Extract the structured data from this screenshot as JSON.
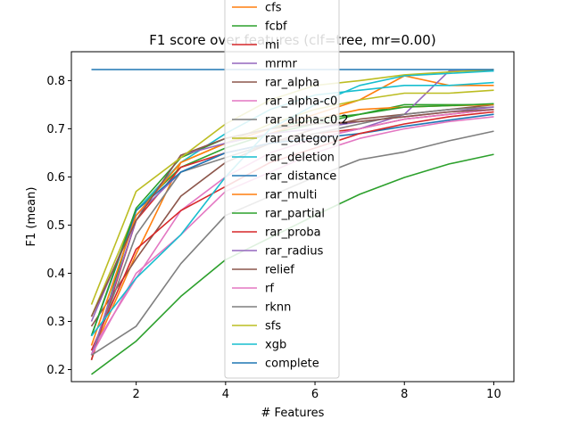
{
  "chart_data": {
    "type": "line",
    "title": "F1 score over features (clf=tree, mr=0.00)",
    "xlabel": "# Features",
    "ylabel": "F1 (mean)",
    "xlim": [
      0.55,
      10.45
    ],
    "ylim": [
      0.175,
      0.86
    ],
    "xticks": [
      2,
      4,
      6,
      8,
      10
    ],
    "yticks": [
      0.2,
      0.3,
      0.4,
      0.5,
      0.6,
      0.7,
      0.8
    ],
    "grid": false,
    "legend_placement": "upper-center",
    "x": [
      1,
      2,
      3,
      4,
      5,
      6,
      7,
      8,
      9,
      10
    ],
    "series": [
      {
        "name": "cfs",
        "color": "#ff7f0e",
        "values": [
          0.23,
          0.44,
          0.63,
          0.67,
          0.7,
          0.73,
          0.76,
          0.81,
          0.79,
          0.79
        ]
      },
      {
        "name": "fcbf",
        "color": "#2ca02c",
        "values": [
          0.22,
          0.53,
          0.62,
          0.66,
          0.69,
          0.71,
          0.73,
          0.75,
          0.75,
          0.75
        ]
      },
      {
        "name": "mi",
        "color": "#d62728",
        "values": [
          0.22,
          0.51,
          0.62,
          0.65,
          0.67,
          0.69,
          0.7,
          0.72,
          0.73,
          0.74
        ]
      },
      {
        "name": "mrmr",
        "color": "#9467bd",
        "values": [
          0.3,
          0.52,
          0.61,
          0.65,
          0.67,
          0.68,
          0.7,
          0.73,
          0.82,
          0.82
        ]
      },
      {
        "name": "rar_alpha",
        "color": "#8c564b",
        "values": [
          0.29,
          0.43,
          0.56,
          0.63,
          0.67,
          0.7,
          0.72,
          0.73,
          0.74,
          0.75
        ]
      },
      {
        "name": "rar_alpha-c0",
        "color": "#e377c2",
        "values": [
          0.24,
          0.39,
          0.53,
          0.6,
          0.65,
          0.68,
          0.7,
          0.72,
          0.73,
          0.74
        ]
      },
      {
        "name": "rar_alpha-c0.2",
        "color": "#7f7f7f",
        "values": [
          0.23,
          0.48,
          0.61,
          0.64,
          0.67,
          0.69,
          0.71,
          0.73,
          0.74,
          0.745
        ]
      },
      {
        "name": "rar_category",
        "color": "#bcbd22",
        "values": [
          0.31,
          0.53,
          0.63,
          0.67,
          0.71,
          0.74,
          0.76,
          0.774,
          0.774,
          0.78
        ]
      },
      {
        "name": "rar_deletion",
        "color": "#17becf",
        "values": [
          0.27,
          0.53,
          0.63,
          0.69,
          0.74,
          0.77,
          0.78,
          0.79,
          0.79,
          0.796
        ]
      },
      {
        "name": "rar_distance",
        "color": "#1f77b4",
        "values": [
          0.27,
          0.53,
          0.61,
          0.65,
          0.67,
          0.68,
          0.69,
          0.705,
          0.718,
          0.73
        ]
      },
      {
        "name": "rar_multi",
        "color": "#ff7f0e",
        "values": [
          0.25,
          0.52,
          0.63,
          0.67,
          0.69,
          0.72,
          0.74,
          0.745,
          0.748,
          0.75
        ]
      },
      {
        "name": "rar_partial",
        "color": "#2ca02c",
        "values": [
          0.27,
          0.535,
          0.64,
          0.68,
          0.7,
          0.72,
          0.73,
          0.745,
          0.748,
          0.752
        ]
      },
      {
        "name": "rar_proba",
        "color": "#d62728",
        "values": [
          0.24,
          0.45,
          0.53,
          0.58,
          0.63,
          0.66,
          0.69,
          0.71,
          0.725,
          0.735
        ]
      },
      {
        "name": "rar_radius",
        "color": "#9467bd",
        "values": [
          0.23,
          0.51,
          0.645,
          0.67,
          0.69,
          0.7,
          0.715,
          0.725,
          0.735,
          0.745
        ]
      },
      {
        "name": "relief",
        "color": "#8c564b",
        "values": [
          0.31,
          0.51,
          0.645,
          0.68,
          0.7,
          0.71,
          0.715,
          0.725,
          0.735,
          0.74
        ]
      },
      {
        "name": "rf",
        "color": "#e377c2",
        "values": [
          0.23,
          0.4,
          0.48,
          0.57,
          0.61,
          0.65,
          0.68,
          0.7,
          0.715,
          0.725
        ]
      },
      {
        "name": "rknn",
        "color": "#7f7f7f",
        "values": [
          0.23,
          0.29,
          0.42,
          0.52,
          0.56,
          0.6,
          0.636,
          0.652,
          0.675,
          0.695
        ]
      },
      {
        "name": "sfs",
        "color": "#bcbd22",
        "values": [
          0.335,
          0.57,
          0.64,
          0.71,
          0.76,
          0.79,
          0.8,
          0.812,
          0.818,
          0.823
        ]
      },
      {
        "name": "xgb",
        "color": "#17becf",
        "values": [
          0.27,
          0.39,
          0.48,
          0.6,
          0.7,
          0.75,
          0.79,
          0.81,
          0.815,
          0.82
        ]
      },
      {
        "name": "complete",
        "color": "#1f77b4",
        "values": [
          0.823,
          0.823,
          0.823,
          0.823,
          0.823,
          0.823,
          0.823,
          0.823,
          0.823,
          0.823
        ]
      },
      {
        "name": "",
        "color": "#2ca02c",
        "values": [
          0.19,
          0.259,
          0.352,
          0.428,
          0.474,
          0.52,
          0.564,
          0.599,
          0.627,
          0.647
        ]
      }
    ]
  }
}
